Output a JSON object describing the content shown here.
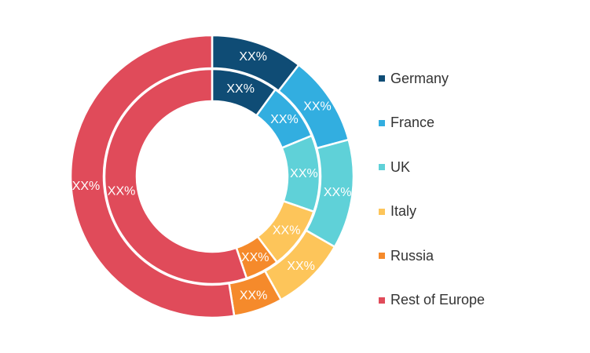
{
  "chart_data": {
    "type": "pie",
    "subtype": "nested-donut",
    "categories": [
      "Germany",
      "France",
      "UK",
      "Italy",
      "Russia",
      "Rest of Europe"
    ],
    "colors": [
      "#0f4c75",
      "#32aee0",
      "#5fd1d8",
      "#fdc55a",
      "#f58a2b",
      "#e04b5a"
    ],
    "series": [
      {
        "ring": "outer",
        "values": [
          10.5,
          10.3,
          12.5,
          8.6,
          5.6,
          52.5
        ],
        "labels": [
          "XX%",
          "XX%",
          "XX%",
          "XX%",
          "XX%",
          "XX%"
        ]
      },
      {
        "ring": "inner",
        "values": [
          10.0,
          8.8,
          11.5,
          9.4,
          5.1,
          55.2
        ],
        "labels": [
          "XX%",
          "XX%",
          "XX%",
          "XX%",
          "XX%",
          "XX%"
        ]
      }
    ],
    "legend_position": "right"
  }
}
